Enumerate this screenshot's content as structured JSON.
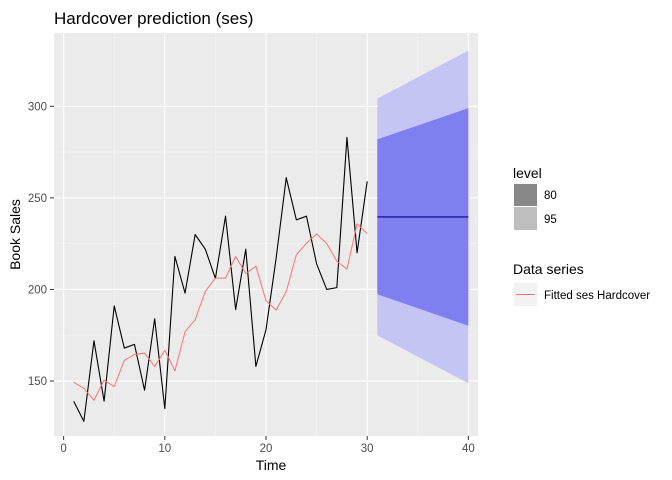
{
  "chart_data": {
    "type": "line",
    "title": "Hardcover prediction (ses)",
    "xlabel": "Time",
    "ylabel": "Book Sales",
    "xlim": [
      -0.95,
      40.95
    ],
    "ylim": [
      120,
      340
    ],
    "xticks": [
      0,
      10,
      20,
      30,
      40
    ],
    "yticks": [
      150,
      200,
      250,
      300
    ],
    "grid": true,
    "colors": {
      "panel": "#ebebeb",
      "grid_major": "#ffffff",
      "observed": "#000000",
      "fitted": "#f8766d",
      "forecast_line": "#00008b",
      "band80": "#7f7fef",
      "band95": "#c4c4f5",
      "legend_key80": "#888888",
      "legend_key95": "#bebebe"
    },
    "observed": {
      "x": [
        1,
        2,
        3,
        4,
        5,
        6,
        7,
        8,
        9,
        10,
        11,
        12,
        13,
        14,
        15,
        16,
        17,
        18,
        19,
        20,
        21,
        22,
        23,
        24,
        25,
        26,
        27,
        28,
        29,
        30
      ],
      "y": [
        139,
        128,
        172,
        139,
        191,
        168,
        170,
        145,
        184,
        135,
        218,
        198,
        230,
        222,
        206,
        240,
        189,
        222,
        158,
        178,
        217,
        261,
        238,
        240,
        214,
        200,
        201,
        283,
        220,
        259
      ]
    },
    "series": [
      {
        "name": "Fitted ses Hardcover",
        "x": [
          1,
          2,
          3,
          4,
          5,
          6,
          7,
          8,
          9,
          10,
          11,
          12,
          13,
          14,
          15,
          16,
          17,
          18,
          19,
          20,
          21,
          22,
          23,
          24,
          25,
          26,
          27,
          28,
          29,
          30
        ],
        "values": [
          149.3,
          146.0,
          139.5,
          150.5,
          147.0,
          161.3,
          164.5,
          165.3,
          157.9,
          166.8,
          155.6,
          176.9,
          183.5,
          198.9,
          206.2,
          206.2,
          218.0,
          208.7,
          212.7,
          193.9,
          188.7,
          198.8,
          219.0,
          225.2,
          230.3,
          225.1,
          215.4,
          211.1,
          235.8,
          230.5
        ]
      }
    ],
    "forecast": {
      "x": [
        31,
        40
      ],
      "point": [
        239.6,
        239.6
      ],
      "lo80": [
        197.4,
        180.2
      ],
      "hi80": [
        281.9,
        299.0
      ],
      "lo95": [
        175.0,
        148.8
      ],
      "hi95": [
        304.2,
        330.4
      ]
    },
    "legend": {
      "placement": "right",
      "level_title": "level",
      "level_items": [
        "80",
        "95"
      ],
      "series_title": "Data series",
      "series_items": [
        "Fitted ses Hardcover"
      ]
    }
  }
}
